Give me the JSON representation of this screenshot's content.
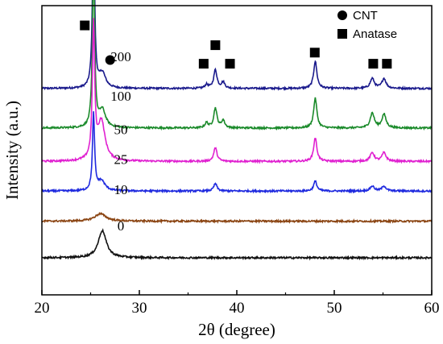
{
  "chart_data": {
    "type": "line",
    "xlabel": "2θ (degree)",
    "ylabel": "Intensity (a.u.)",
    "xlim": [
      20,
      60
    ],
    "x_ticks": [
      "20",
      "30",
      "40",
      "50",
      "60"
    ],
    "y_ticks_shown": false,
    "grid": false,
    "legend": {
      "placement": "top-right",
      "entries": [
        {
          "marker": "circle",
          "label": "CNT"
        },
        {
          "marker": "square",
          "label": "Anatase"
        }
      ]
    },
    "series": [
      {
        "label": "200",
        "color": "#1a1a8c",
        "baseline": 6.85,
        "peaks": [
          [
            25.3,
            6.8,
            0.13
          ],
          [
            26.2,
            0.6,
            0.4
          ],
          [
            36.9,
            0.15,
            0.2
          ],
          [
            37.8,
            0.75,
            0.2
          ],
          [
            38.6,
            0.25,
            0.2
          ],
          [
            48.05,
            1.1,
            0.2
          ],
          [
            53.9,
            0.4,
            0.25
          ],
          [
            55.1,
            0.4,
            0.25
          ]
        ]
      },
      {
        "label": "100",
        "color": "#1a8a2a",
        "baseline": 5.25,
        "peaks": [
          [
            25.3,
            7.0,
            0.13
          ],
          [
            26.2,
            0.7,
            0.4
          ],
          [
            36.9,
            0.2,
            0.2
          ],
          [
            37.8,
            0.8,
            0.2
          ],
          [
            38.6,
            0.3,
            0.2
          ],
          [
            48.05,
            1.2,
            0.2
          ],
          [
            53.9,
            0.6,
            0.25
          ],
          [
            55.1,
            0.55,
            0.25
          ]
        ]
      },
      {
        "label": "50",
        "color": "#e020d0",
        "baseline": 3.9,
        "peaks": [
          [
            25.3,
            5.4,
            0.14
          ],
          [
            26.1,
            1.6,
            0.45
          ],
          [
            37.8,
            0.55,
            0.2
          ],
          [
            48.05,
            0.95,
            0.2
          ],
          [
            53.9,
            0.35,
            0.25
          ],
          [
            55.1,
            0.35,
            0.25
          ]
        ]
      },
      {
        "label": "25",
        "color": "#1f2adf",
        "baseline": 2.7,
        "peaks": [
          [
            25.3,
            3.1,
            0.13
          ],
          [
            26.1,
            0.4,
            0.45
          ],
          [
            37.8,
            0.3,
            0.2
          ],
          [
            48.05,
            0.4,
            0.2
          ],
          [
            53.9,
            0.2,
            0.25
          ],
          [
            55.1,
            0.2,
            0.25
          ]
        ]
      },
      {
        "label": "10",
        "color": "#8b4513",
        "baseline": 1.48,
        "peaks": [
          [
            26.0,
            0.3,
            0.7
          ]
        ]
      },
      {
        "label": "0",
        "color": "#111111",
        "baseline": 0.0,
        "peaks": [
          [
            26.2,
            1.1,
            0.5
          ]
        ]
      }
    ],
    "markers": [
      {
        "type": "square",
        "x": 24.4,
        "y": 9.4
      },
      {
        "type": "circle",
        "x": 27.0,
        "y": 8.0
      },
      {
        "type": "square",
        "x": 36.6,
        "y": 7.85
      },
      {
        "type": "square",
        "x": 37.8,
        "y": 8.6
      },
      {
        "type": "square",
        "x": 39.3,
        "y": 7.85
      },
      {
        "type": "square",
        "x": 48.0,
        "y": 8.3
      },
      {
        "type": "square",
        "x": 54.0,
        "y": 7.85
      },
      {
        "type": "square",
        "x": 55.4,
        "y": 7.85
      }
    ],
    "ylim": [
      -1.5,
      10.2
    ]
  }
}
